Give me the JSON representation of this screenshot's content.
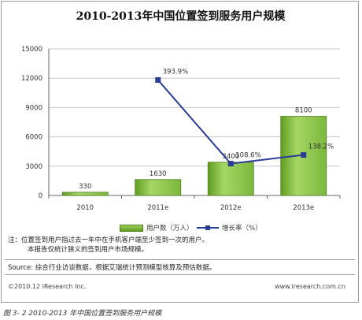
{
  "title": "2010-2013年中国位置签到服务用户规模",
  "chart_data": {
    "type": "bar",
    "categories": [
      "2010",
      "2011e",
      "2012e",
      "2013e"
    ],
    "series": [
      {
        "name": "用户数（万人）",
        "type": "bar",
        "axis": "left",
        "values": [
          330,
          1630,
          3400,
          8100
        ]
      },
      {
        "name": "增长率（%）",
        "type": "line",
        "axis": "right",
        "values": [
          null,
          393.9,
          108.6,
          138.2
        ]
      }
    ],
    "bar_labels": [
      "330",
      "1630",
      "3400",
      "8100"
    ],
    "line_labels": [
      "",
      "393.9%",
      "108.6%",
      "138.2%"
    ],
    "y_ticks": [
      "0",
      "3000",
      "6000",
      "9000",
      "12000",
      "15000"
    ],
    "ylim": [
      0,
      15000
    ],
    "y2lim": [
      0,
      500
    ],
    "legend_position": "bottom",
    "grid": true,
    "colors": {
      "bar": "#7ab83c",
      "bar_dark": "#5f9d22",
      "line": "#2a3c96",
      "grid": "#c8c8c8"
    }
  },
  "legend": {
    "bar_label": "用户数（万人）",
    "line_label": "增长率（%）"
  },
  "notes": {
    "line1": "注：位置签到用户指过去一年中在手机客户端至少签到一次的用户。",
    "line2": "本报告仅统计狭义的签到用户市场规模。"
  },
  "source": "Source: 综合行业访谈数据，根据艾瑞统计预测模型核算及预估数据。",
  "footer": {
    "left": "©2010.12 iResearch Inc.",
    "right": "www.iresearch.com.cn"
  },
  "caption": "图 3- 2 2010-2013 年中国位置签到服务用户规模"
}
